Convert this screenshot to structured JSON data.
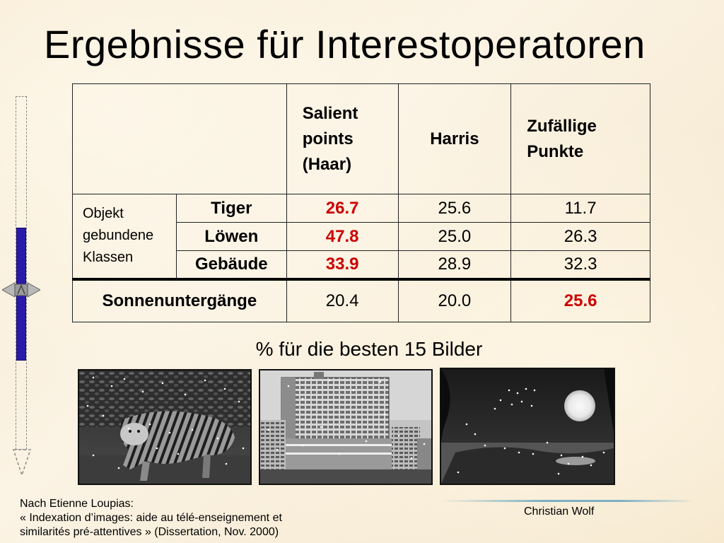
{
  "slide": {
    "title": "Ergebnisse für Interestoperatoren",
    "caption": "% für die besten 15 Bilder"
  },
  "table": {
    "headers": [
      "Salient points (Haar)",
      "Harris",
      "Zufällige Punkte"
    ],
    "group_label": "Objekt gebundene Klassen",
    "rows": [
      {
        "label": "Tiger",
        "values": [
          "26.7",
          "25.6",
          "11.7"
        ],
        "best_index": 0
      },
      {
        "label": "Löwen",
        "values": [
          "47.8",
          "25.0",
          "26.3"
        ],
        "best_index": 0
      },
      {
        "label": "Gebäude",
        "values": [
          "33.9",
          "28.9",
          "32.3"
        ],
        "best_index": 0
      },
      {
        "label": "Sonnenuntergänge",
        "values": [
          "20.4",
          "20.0",
          "25.6"
        ],
        "best_index": 2
      }
    ],
    "highlight_color": "#cc0000"
  },
  "images": [
    {
      "icon": "tiger-photo"
    },
    {
      "icon": "building-photo"
    },
    {
      "icon": "sunset-photo"
    }
  ],
  "footer": {
    "source_line1": "Nach Etienne Loupias:",
    "source_line2": "« Indexation d’images: aide au télé-enseignement et",
    "source_line3": "similarités pré-attentives » (Dissertation, Nov. 2000)",
    "author": "Christian Wolf"
  }
}
